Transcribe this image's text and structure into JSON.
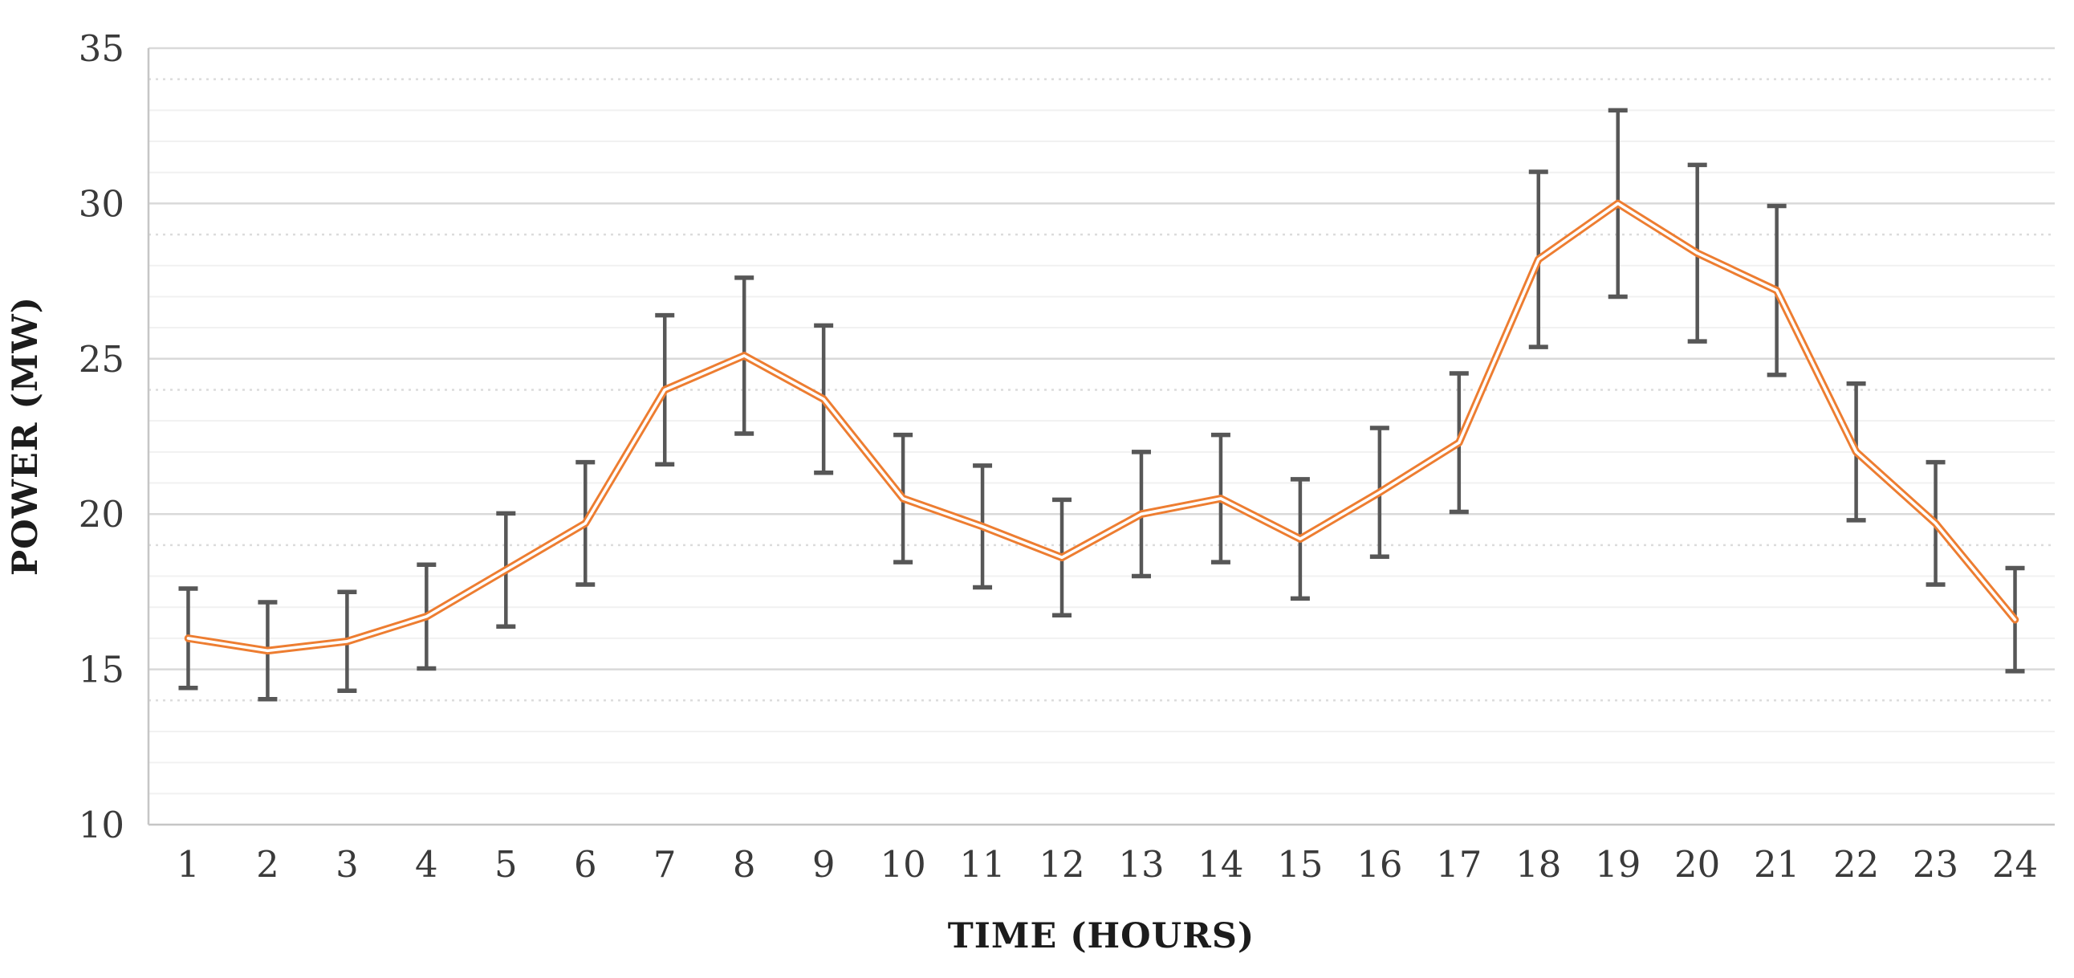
{
  "chart_data": {
    "type": "line",
    "title": "",
    "xlabel": "TIME (HOURS)",
    "ylabel": "POWER (MW)",
    "categories": [
      1,
      2,
      3,
      4,
      5,
      6,
      7,
      8,
      9,
      10,
      11,
      12,
      13,
      14,
      15,
      16,
      17,
      18,
      19,
      20,
      21,
      22,
      23,
      24
    ],
    "series": [
      {
        "name": "power",
        "values": [
          16.0,
          15.6,
          15.9,
          16.7,
          18.2,
          19.7,
          24.0,
          25.1,
          23.7,
          20.5,
          19.6,
          18.6,
          20.0,
          20.5,
          19.2,
          20.7,
          22.3,
          28.2,
          30.0,
          28.4,
          27.2,
          22.0,
          19.7,
          16.6
        ]
      }
    ],
    "error_bars": {
      "low": [
        14.4,
        14.04,
        14.31,
        15.03,
        16.38,
        17.73,
        21.6,
        22.59,
        21.33,
        18.45,
        17.64,
        16.74,
        18.0,
        18.45,
        17.28,
        18.63,
        20.07,
        25.38,
        27.0,
        25.56,
        24.48,
        19.8,
        17.73,
        14.94
      ],
      "high": [
        17.6,
        17.16,
        17.49,
        18.37,
        20.02,
        21.67,
        26.4,
        27.61,
        26.07,
        22.55,
        21.56,
        20.46,
        22.0,
        22.55,
        21.12,
        22.77,
        24.53,
        31.02,
        33.0,
        31.24,
        29.92,
        24.2,
        21.67,
        18.26
      ]
    },
    "ylim": [
      10,
      35
    ],
    "yticks": [
      10,
      15,
      20,
      25,
      30,
      35
    ],
    "grid": "horizontal major (5 MW, solid) + minor (1 MW, faint; dotted at 14/19/24/29/34)",
    "legend": "none",
    "colors": {
      "line": "#ED7D31",
      "line_core": "#FFFFFF",
      "error_bar": "#575757",
      "grid_major": "#D9D9D9",
      "grid_minor": "#F1F1F1",
      "grid_minor_dotted": "#DCDCDC",
      "axis_line": "#C6C6C6",
      "tick_text": "#3A3A3A",
      "title_text": "#1C1C1C",
      "background": "#FFFFFF"
    }
  }
}
